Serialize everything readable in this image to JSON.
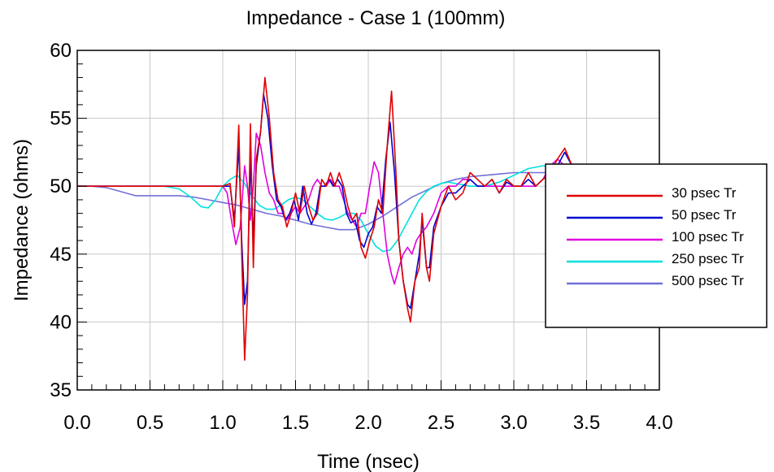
{
  "chart_data": {
    "type": "line",
    "title": "Impedance - Case 1 (100mm)",
    "xlabel": "Time (nsec)",
    "ylabel": "Impedance (ohms)",
    "xlim": [
      0.0,
      4.0
    ],
    "ylim": [
      35,
      60
    ],
    "x_ticks": [
      "0.0",
      "0.5",
      "1.0",
      "1.5",
      "2.0",
      "2.5",
      "3.0",
      "3.5",
      "4.0"
    ],
    "y_ticks": [
      "35",
      "40",
      "45",
      "50",
      "55",
      "60"
    ],
    "grid": true,
    "legend_position": "right",
    "series": [
      {
        "name": "30 psec Tr",
        "color": "#e00000",
        "points": [
          [
            0,
            50
          ],
          [
            1.0,
            50
          ],
          [
            1.05,
            50.2
          ],
          [
            1.08,
            47
          ],
          [
            1.11,
            54.5
          ],
          [
            1.13,
            45
          ],
          [
            1.15,
            37.2
          ],
          [
            1.17,
            42
          ],
          [
            1.19,
            54.6
          ],
          [
            1.21,
            44
          ],
          [
            1.23,
            52
          ],
          [
            1.26,
            54
          ],
          [
            1.29,
            58
          ],
          [
            1.32,
            55
          ],
          [
            1.35,
            51
          ],
          [
            1.38,
            49
          ],
          [
            1.41,
            48.5
          ],
          [
            1.44,
            47
          ],
          [
            1.47,
            48
          ],
          [
            1.5,
            49.5
          ],
          [
            1.53,
            48
          ],
          [
            1.56,
            50
          ],
          [
            1.59,
            48.5
          ],
          [
            1.62,
            47.5
          ],
          [
            1.65,
            48
          ],
          [
            1.68,
            50.5
          ],
          [
            1.71,
            50
          ],
          [
            1.74,
            51
          ],
          [
            1.77,
            50
          ],
          [
            1.8,
            51
          ],
          [
            1.83,
            50
          ],
          [
            1.86,
            48.5
          ],
          [
            1.89,
            47.5
          ],
          [
            1.92,
            48
          ],
          [
            1.95,
            45.5
          ],
          [
            1.98,
            44.7
          ],
          [
            2.01,
            46
          ],
          [
            2.04,
            47
          ],
          [
            2.07,
            49
          ],
          [
            2.1,
            48
          ],
          [
            2.13,
            53
          ],
          [
            2.16,
            57
          ],
          [
            2.19,
            51
          ],
          [
            2.21,
            46
          ],
          [
            2.24,
            43
          ],
          [
            2.27,
            41
          ],
          [
            2.29,
            40
          ],
          [
            2.32,
            43
          ],
          [
            2.35,
            44
          ],
          [
            2.37,
            48
          ],
          [
            2.4,
            44
          ],
          [
            2.42,
            43
          ],
          [
            2.45,
            46.5
          ],
          [
            2.5,
            48.5
          ],
          [
            2.55,
            50
          ],
          [
            2.6,
            49
          ],
          [
            2.65,
            49.5
          ],
          [
            2.7,
            51
          ],
          [
            2.75,
            50.5
          ],
          [
            2.8,
            50
          ],
          [
            2.85,
            50.5
          ],
          [
            2.9,
            49.5
          ],
          [
            2.95,
            50.5
          ],
          [
            3.0,
            50
          ],
          [
            3.05,
            50
          ],
          [
            3.1,
            51
          ],
          [
            3.15,
            50
          ],
          [
            3.2,
            50.5
          ],
          [
            3.25,
            51
          ],
          [
            3.3,
            52
          ],
          [
            3.35,
            52.8
          ],
          [
            3.4,
            51.5
          ]
        ]
      },
      {
        "name": "50 psec Tr",
        "color": "#0000d0",
        "points": [
          [
            0,
            50
          ],
          [
            1.0,
            50
          ],
          [
            1.05,
            50
          ],
          [
            1.08,
            47.5
          ],
          [
            1.11,
            53
          ],
          [
            1.13,
            46
          ],
          [
            1.15,
            41.3
          ],
          [
            1.17,
            43
          ],
          [
            1.19,
            52
          ],
          [
            1.21,
            46
          ],
          [
            1.23,
            51.5
          ],
          [
            1.26,
            54
          ],
          [
            1.28,
            56.8
          ],
          [
            1.31,
            55
          ],
          [
            1.34,
            51.5
          ],
          [
            1.37,
            49
          ],
          [
            1.4,
            48.5
          ],
          [
            1.43,
            47.5
          ],
          [
            1.46,
            48
          ],
          [
            1.49,
            49
          ],
          [
            1.52,
            47.5
          ],
          [
            1.55,
            50
          ],
          [
            1.58,
            48
          ],
          [
            1.61,
            47.2
          ],
          [
            1.64,
            48
          ],
          [
            1.67,
            50
          ],
          [
            1.7,
            50
          ],
          [
            1.73,
            50.5
          ],
          [
            1.76,
            50
          ],
          [
            1.79,
            50.5
          ],
          [
            1.82,
            50
          ],
          [
            1.85,
            48
          ],
          [
            1.88,
            47.3
          ],
          [
            1.91,
            47.5
          ],
          [
            1.94,
            46
          ],
          [
            1.97,
            45.5
          ],
          [
            2.0,
            46.5
          ],
          [
            2.03,
            47
          ],
          [
            2.06,
            48.5
          ],
          [
            2.09,
            48
          ],
          [
            2.12,
            52
          ],
          [
            2.15,
            54.7
          ],
          [
            2.18,
            51
          ],
          [
            2.21,
            46
          ],
          [
            2.24,
            43
          ],
          [
            2.27,
            41.3
          ],
          [
            2.29,
            41
          ],
          [
            2.32,
            43
          ],
          [
            2.35,
            45
          ],
          [
            2.37,
            47.5
          ],
          [
            2.4,
            44
          ],
          [
            2.42,
            44
          ],
          [
            2.45,
            47
          ],
          [
            2.5,
            48.5
          ],
          [
            2.55,
            49.5
          ],
          [
            2.6,
            49.5
          ],
          [
            2.65,
            50
          ],
          [
            2.7,
            50.5
          ],
          [
            2.75,
            50
          ],
          [
            2.8,
            50
          ],
          [
            2.85,
            50.5
          ],
          [
            2.9,
            49.5
          ],
          [
            2.95,
            50.3
          ],
          [
            3.0,
            50
          ],
          [
            3.05,
            50
          ],
          [
            3.1,
            50.5
          ],
          [
            3.15,
            50
          ],
          [
            3.2,
            50.5
          ],
          [
            3.25,
            51
          ],
          [
            3.3,
            51.5
          ],
          [
            3.35,
            52.5
          ],
          [
            3.4,
            51.5
          ]
        ]
      },
      {
        "name": "100 psec Tr",
        "color": "#e000e0",
        "points": [
          [
            0,
            50
          ],
          [
            1.0,
            50
          ],
          [
            1.03,
            49.5
          ],
          [
            1.06,
            47.5
          ],
          [
            1.09,
            45.7
          ],
          [
            1.12,
            47
          ],
          [
            1.15,
            51.5
          ],
          [
            1.17,
            50
          ],
          [
            1.19,
            47.5
          ],
          [
            1.21,
            50
          ],
          [
            1.23,
            53.9
          ],
          [
            1.26,
            53
          ],
          [
            1.29,
            51
          ],
          [
            1.32,
            49.5
          ],
          [
            1.35,
            49
          ],
          [
            1.38,
            48
          ],
          [
            1.41,
            48
          ],
          [
            1.44,
            47.5
          ],
          [
            1.47,
            48
          ],
          [
            1.5,
            48.5
          ],
          [
            1.53,
            48
          ],
          [
            1.56,
            48.5
          ],
          [
            1.59,
            49
          ],
          [
            1.62,
            50
          ],
          [
            1.65,
            50.5
          ],
          [
            1.68,
            50
          ],
          [
            1.71,
            50
          ],
          [
            1.74,
            50.5
          ],
          [
            1.77,
            50
          ],
          [
            1.8,
            50
          ],
          [
            1.83,
            49
          ],
          [
            1.86,
            48
          ],
          [
            1.89,
            47.5
          ],
          [
            1.92,
            47
          ],
          [
            1.95,
            48
          ],
          [
            1.98,
            48
          ],
          [
            2.01,
            50
          ],
          [
            2.04,
            51.8
          ],
          [
            2.07,
            51
          ],
          [
            2.1,
            48
          ],
          [
            2.13,
            45
          ],
          [
            2.16,
            43.5
          ],
          [
            2.18,
            42.8
          ],
          [
            2.21,
            44
          ],
          [
            2.24,
            45
          ],
          [
            2.27,
            45.5
          ],
          [
            2.3,
            45
          ],
          [
            2.33,
            46
          ],
          [
            2.36,
            46.5
          ],
          [
            2.4,
            47
          ],
          [
            2.45,
            48
          ],
          [
            2.5,
            49.5
          ],
          [
            2.55,
            50
          ],
          [
            2.6,
            50
          ],
          [
            2.65,
            50.5
          ],
          [
            2.7,
            50.5
          ],
          [
            2.75,
            50
          ],
          [
            2.8,
            50
          ],
          [
            2.85,
            50
          ],
          [
            2.9,
            50
          ],
          [
            2.95,
            50
          ],
          [
            3.0,
            50
          ],
          [
            3.05,
            50
          ],
          [
            3.1,
            50
          ],
          [
            3.15,
            50
          ],
          [
            3.2,
            50.5
          ],
          [
            3.25,
            51.5
          ],
          [
            3.3,
            52
          ],
          [
            3.35,
            51.5
          ],
          [
            3.4,
            51
          ]
        ]
      },
      {
        "name": "250 psec Tr",
        "color": "#00e0e0",
        "points": [
          [
            0,
            50
          ],
          [
            0.6,
            50
          ],
          [
            0.7,
            49.8
          ],
          [
            0.78,
            49.2
          ],
          [
            0.85,
            48.5
          ],
          [
            0.9,
            48.4
          ],
          [
            0.95,
            49
          ],
          [
            1.0,
            50
          ],
          [
            1.05,
            50.5
          ],
          [
            1.1,
            50.8
          ],
          [
            1.15,
            50.2
          ],
          [
            1.2,
            49.3
          ],
          [
            1.25,
            48.6
          ],
          [
            1.3,
            48.3
          ],
          [
            1.35,
            48.3
          ],
          [
            1.4,
            48.6
          ],
          [
            1.45,
            49
          ],
          [
            1.5,
            49.2
          ],
          [
            1.55,
            49
          ],
          [
            1.6,
            48.5
          ],
          [
            1.65,
            48
          ],
          [
            1.7,
            47.6
          ],
          [
            1.75,
            47.5
          ],
          [
            1.8,
            47.7
          ],
          [
            1.85,
            48
          ],
          [
            1.9,
            48
          ],
          [
            1.95,
            47.5
          ],
          [
            2.0,
            46.5
          ],
          [
            2.05,
            45.6
          ],
          [
            2.1,
            45.2
          ],
          [
            2.15,
            45.3
          ],
          [
            2.2,
            46
          ],
          [
            2.25,
            47
          ],
          [
            2.3,
            48
          ],
          [
            2.35,
            49
          ],
          [
            2.4,
            49.6
          ],
          [
            2.45,
            50
          ],
          [
            2.5,
            50.2
          ],
          [
            2.55,
            50.3
          ],
          [
            2.6,
            50.2
          ],
          [
            2.7,
            50
          ],
          [
            2.8,
            50
          ],
          [
            2.9,
            50.3
          ],
          [
            3.0,
            50.8
          ],
          [
            3.1,
            51.3
          ],
          [
            3.2,
            51.5
          ],
          [
            3.3,
            51.3
          ],
          [
            3.4,
            51
          ]
        ]
      },
      {
        "name": "500 psec Tr",
        "color": "#7070d8",
        "points": [
          [
            0,
            50
          ],
          [
            0.1,
            50
          ],
          [
            0.2,
            49.9
          ],
          [
            0.3,
            49.6
          ],
          [
            0.4,
            49.3
          ],
          [
            0.5,
            49.3
          ],
          [
            0.6,
            49.3
          ],
          [
            0.7,
            49.3
          ],
          [
            0.8,
            49.2
          ],
          [
            0.9,
            49
          ],
          [
            1.0,
            48.8
          ],
          [
            1.1,
            48.6
          ],
          [
            1.2,
            48.3
          ],
          [
            1.3,
            48
          ],
          [
            1.4,
            47.8
          ],
          [
            1.5,
            47.5
          ],
          [
            1.6,
            47.2
          ],
          [
            1.7,
            47
          ],
          [
            1.8,
            46.8
          ],
          [
            1.9,
            46.8
          ],
          [
            2.0,
            47.2
          ],
          [
            2.1,
            47.8
          ],
          [
            2.2,
            48.5
          ],
          [
            2.3,
            49.2
          ],
          [
            2.4,
            49.7
          ],
          [
            2.5,
            50.2
          ],
          [
            2.6,
            50.5
          ],
          [
            2.7,
            50.7
          ],
          [
            2.8,
            50.8
          ],
          [
            2.9,
            50.9
          ],
          [
            3.0,
            51
          ],
          [
            3.1,
            51
          ],
          [
            3.2,
            51
          ],
          [
            3.3,
            51
          ],
          [
            3.4,
            51
          ]
        ]
      }
    ]
  }
}
